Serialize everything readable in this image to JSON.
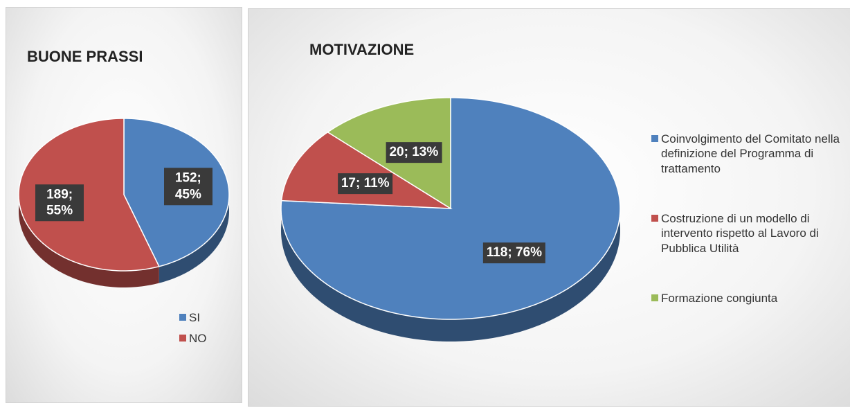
{
  "chart_data": [
    {
      "type": "pie",
      "title": "BUONE PRASSI",
      "categories": [
        "SI",
        "NO"
      ],
      "values": [
        152,
        189
      ],
      "value_labels": [
        "152; 45%",
        "189; 55%"
      ],
      "colors": [
        "#4f81bd",
        "#c0504d"
      ],
      "legend": "bottom-right"
    },
    {
      "type": "pie",
      "title": "MOTIVAZIONE",
      "categories": [
        "Coinvolgimento del Comitato nella definizione del Programma di trattamento",
        "Costruzione di un modello di intervento rispetto al Lavoro di Pubblica Utilità",
        "Formazione congiunta"
      ],
      "values": [
        118,
        17,
        20
      ],
      "value_labels": [
        "118; 76%",
        "17; 11%",
        "20; 13%"
      ],
      "colors": [
        "#4f81bd",
        "#c0504d",
        "#9bbb59"
      ],
      "legend": "right"
    }
  ]
}
